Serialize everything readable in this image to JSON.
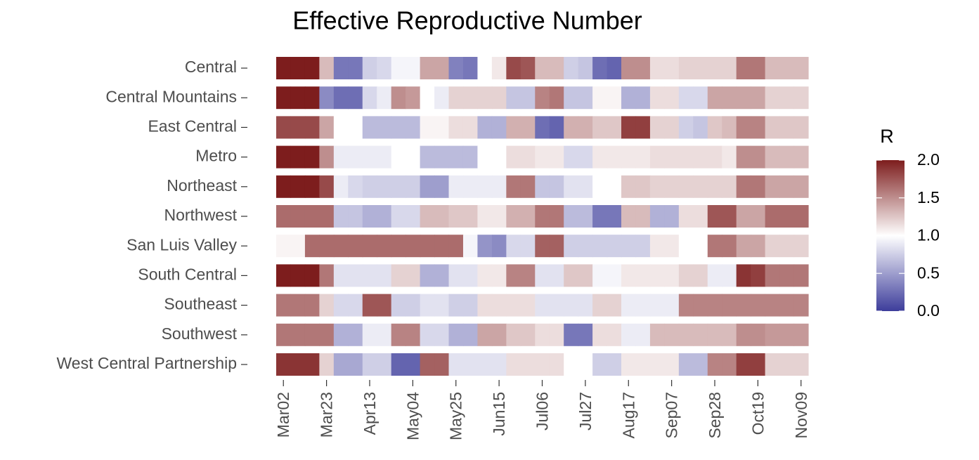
{
  "chart_data": {
    "type": "heatmap",
    "title": "Effective Reproductive Number",
    "legend_title": "R",
    "categories": [
      "Mar02",
      null,
      null,
      "Mar23",
      null,
      null,
      "Apr13",
      null,
      null,
      "May04",
      null,
      null,
      "May25",
      null,
      null,
      "Jun15",
      null,
      null,
      "Jul06",
      null,
      null,
      "Jul27",
      null,
      null,
      "Aug17",
      null,
      null,
      "Sep07",
      null,
      null,
      "Sep28",
      null,
      null,
      "Oct19",
      null,
      null,
      "Nov09"
    ],
    "series": [
      {
        "name": "Central",
        "values": [
          2,
          2,
          2,
          1.3,
          0.3,
          0.3,
          0.75,
          0.8,
          0.95,
          0.95,
          1.4,
          1.4,
          0.35,
          0.3,
          1.0,
          1.1,
          1.8,
          1.75,
          1.3,
          1.3,
          0.75,
          0.7,
          0.25,
          0.2,
          1.5,
          1.5,
          1.15,
          1.15,
          1.2,
          1.2,
          1.2,
          1.2,
          1.6,
          1.6,
          1.3,
          1.3,
          1.3
        ]
      },
      {
        "name": "Central Mountains",
        "values": [
          2,
          2,
          2,
          0.4,
          0.25,
          0.25,
          0.8,
          0.9,
          1.5,
          1.45,
          1.0,
          0.9,
          1.2,
          1.2,
          1.2,
          1.2,
          0.7,
          0.7,
          1.55,
          1.6,
          0.7,
          0.7,
          1.05,
          1.05,
          0.6,
          0.6,
          1.15,
          1.15,
          0.8,
          0.8,
          1.4,
          1.4,
          1.4,
          1.4,
          1.2,
          1.2,
          1.2
        ]
      },
      {
        "name": "East Central",
        "values": [
          1.8,
          1.8,
          1.8,
          1.4,
          1.0,
          1.0,
          0.65,
          0.65,
          0.65,
          0.65,
          1.05,
          1.05,
          1.15,
          1.15,
          0.6,
          0.6,
          1.35,
          1.35,
          0.25,
          0.2,
          1.35,
          1.35,
          1.25,
          1.25,
          1.85,
          1.85,
          1.2,
          1.2,
          0.75,
          0.7,
          1.25,
          1.3,
          1.55,
          1.55,
          1.25,
          1.25,
          1.25
        ]
      },
      {
        "name": "Metro",
        "values": [
          2,
          2,
          2,
          1.5,
          0.9,
          0.9,
          0.9,
          0.9,
          1.0,
          1.0,
          0.65,
          0.65,
          0.65,
          0.65,
          1.0,
          1.0,
          1.15,
          1.15,
          1.1,
          1.1,
          0.8,
          0.8,
          1.1,
          1.1,
          1.1,
          1.1,
          1.15,
          1.15,
          1.15,
          1.15,
          1.15,
          1.1,
          1.5,
          1.5,
          1.3,
          1.3,
          1.3
        ]
      },
      {
        "name": "Northeast",
        "values": [
          2,
          2,
          2,
          1.8,
          0.9,
          0.8,
          0.75,
          0.75,
          0.75,
          0.75,
          0.5,
          0.5,
          0.9,
          0.9,
          0.9,
          0.9,
          1.6,
          1.6,
          0.7,
          0.7,
          0.85,
          0.85,
          1.0,
          1.0,
          1.25,
          1.25,
          1.2,
          1.2,
          1.2,
          1.2,
          1.2,
          1.2,
          1.6,
          1.6,
          1.4,
          1.4,
          1.4
        ]
      },
      {
        "name": "Northwest",
        "values": [
          1.65,
          1.65,
          1.65,
          1.65,
          0.7,
          0.7,
          0.6,
          0.6,
          0.8,
          0.8,
          1.3,
          1.3,
          1.25,
          1.25,
          1.1,
          1.1,
          1.35,
          1.35,
          1.6,
          1.6,
          0.65,
          0.65,
          0.3,
          0.3,
          1.3,
          1.3,
          0.6,
          0.6,
          1.15,
          1.15,
          1.75,
          1.75,
          1.4,
          1.4,
          1.65,
          1.65,
          1.65
        ]
      },
      {
        "name": "San Luis Valley",
        "values": [
          1.05,
          1.05,
          1.65,
          1.65,
          1.65,
          1.65,
          1.65,
          1.65,
          1.65,
          1.65,
          1.65,
          1.65,
          1.65,
          0.95,
          0.45,
          0.4,
          0.8,
          0.8,
          1.7,
          1.7,
          0.75,
          0.75,
          0.75,
          0.75,
          0.75,
          0.75,
          1.1,
          1.1,
          1.0,
          1.0,
          1.6,
          1.6,
          1.4,
          1.4,
          1.2,
          1.2,
          1.2
        ]
      },
      {
        "name": "South Central",
        "values": [
          2,
          2,
          2,
          1.6,
          0.85,
          0.85,
          0.85,
          0.85,
          1.2,
          1.2,
          0.6,
          0.6,
          0.85,
          0.85,
          1.1,
          1.1,
          1.55,
          1.55,
          0.85,
          0.85,
          1.25,
          1.25,
          0.95,
          0.95,
          1.1,
          1.1,
          1.1,
          1.1,
          1.2,
          1.2,
          0.9,
          0.9,
          1.9,
          1.85,
          1.6,
          1.6,
          1.6
        ]
      },
      {
        "name": "Southeast",
        "values": [
          1.6,
          1.6,
          1.6,
          1.2,
          0.8,
          0.8,
          1.75,
          1.75,
          0.75,
          0.75,
          0.85,
          0.85,
          0.75,
          0.75,
          1.15,
          1.15,
          1.15,
          1.15,
          0.85,
          0.85,
          0.85,
          0.85,
          1.2,
          1.2,
          0.9,
          0.9,
          0.9,
          0.9,
          1.55,
          1.55,
          1.55,
          1.55,
          1.55,
          1.55,
          1.55,
          1.55,
          1.55
        ]
      },
      {
        "name": "Southwest",
        "values": [
          1.6,
          1.6,
          1.6,
          1.6,
          0.6,
          0.6,
          0.9,
          0.9,
          1.55,
          1.55,
          0.8,
          0.8,
          0.6,
          0.6,
          1.4,
          1.4,
          1.25,
          1.25,
          1.15,
          1.15,
          0.3,
          0.3,
          1.15,
          1.15,
          0.9,
          0.9,
          1.3,
          1.3,
          1.3,
          1.3,
          1.3,
          1.3,
          1.5,
          1.5,
          1.45,
          1.45,
          1.45
        ]
      },
      {
        "name": "West Central Partnership",
        "values": [
          1.9,
          1.9,
          1.9,
          1.2,
          0.55,
          0.55,
          0.75,
          0.75,
          0.2,
          0.2,
          1.7,
          1.7,
          0.85,
          0.85,
          0.85,
          0.85,
          1.15,
          1.15,
          1.15,
          1.15,
          1.0,
          1.0,
          0.75,
          0.75,
          1.1,
          1.1,
          1.1,
          1.1,
          0.65,
          0.65,
          1.55,
          1.55,
          1.85,
          1.85,
          1.2,
          1.2,
          1.2
        ]
      }
    ],
    "zlim": [
      0,
      2
    ],
    "zticks": [
      {
        "value": 0,
        "label": "0.0"
      },
      {
        "value": 0.5,
        "label": "0.5"
      },
      {
        "value": 1,
        "label": "1.0"
      },
      {
        "value": 1.5,
        "label": "1.5"
      },
      {
        "value": 2,
        "label": "2.0"
      }
    ],
    "colors": {
      "low": "#3d3d9b",
      "mid": "#ffffff",
      "high": "#7d1d1d"
    }
  }
}
